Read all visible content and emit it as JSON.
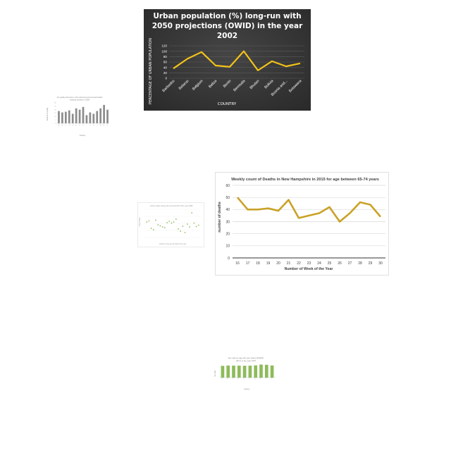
{
  "chart_data": [
    {
      "type": "line",
      "title": "Urban population (%) long-run with 2050 projections (OWID) in the year 2002",
      "xlabel": "COUNTRY",
      "ylabel": "PERCENTAGE OF URBAN POPULATION",
      "categories": [
        "Barbados",
        "Belarus",
        "Belgium",
        "Belize",
        "Benin",
        "Bermuda",
        "Bhutan",
        "Bolivia",
        "Bosnia and...",
        "Botswana"
      ],
      "series": [
        {
          "values": [
            36,
            72,
            97,
            47,
            42,
            100,
            29,
            63,
            44,
            55
          ]
        }
      ],
      "ylim": [
        0,
        120
      ],
      "yticks": [
        "0",
        "20",
        "40",
        "60",
        "80",
        "100",
        "120"
      ],
      "grid": true,
      "colors": {
        "background": "#3b3b3b",
        "line": "#f2c218",
        "text": "#ffffff",
        "grid": "#5a5a5a"
      }
    },
    {
      "type": "bar",
      "title": "Air quality discounts in the national environmental health tracking network in 2005",
      "xlabel": "Industry",
      "ylabel": "Amount of quality",
      "categories": [
        "A",
        "B",
        "C",
        "D",
        "E",
        "F",
        "G",
        "H",
        "I",
        "J",
        "K",
        "L",
        "M",
        "N",
        "O"
      ],
      "values": [
        18,
        16,
        17,
        19,
        14,
        22,
        20,
        24,
        12,
        16,
        14,
        18,
        22,
        27,
        20
      ],
      "ylim": [
        0,
        30
      ],
      "colors": {
        "bar": "#8c8c8c"
      }
    },
    {
      "type": "scatter",
      "title": "Cohort value during the second half of the year 2008",
      "xlabel": "Number of the second half of the year",
      "ylabel": "Cohort value",
      "x": [
        1,
        2,
        3,
        4,
        5,
        6,
        7,
        8,
        9,
        10,
        11,
        12,
        13,
        14,
        15,
        16,
        17,
        18,
        19,
        20,
        21,
        22,
        23,
        24
      ],
      "y": [
        2200,
        2350,
        1300,
        1100,
        2450,
        1800,
        1650,
        1500,
        1400,
        2100,
        2300,
        2050,
        2200,
        2600,
        1200,
        900,
        1600,
        700,
        1900,
        1500,
        3500,
        2050,
        1550,
        1750
      ],
      "xlim": [
        0,
        25
      ],
      "ylim": [
        0,
        4000
      ],
      "colors": {
        "point": "#8dbb5a"
      }
    },
    {
      "type": "line",
      "title": "Weekly count of Deaths in New Hampshire in 2015 for age between 65-74 years",
      "xlabel": "Number of Week of the Year",
      "ylabel": "number of deaths",
      "categories": [
        "16",
        "17",
        "18",
        "19",
        "20",
        "21",
        "22",
        "23",
        "24",
        "25",
        "26",
        "27",
        "28",
        "29",
        "30"
      ],
      "series": [
        {
          "values": [
            50,
            40,
            40,
            41,
            39,
            48,
            33,
            35,
            37,
            42,
            30,
            37,
            46,
            44,
            34
          ]
        }
      ],
      "ylim": [
        0,
        60
      ],
      "yticks": [
        "0",
        "10",
        "20",
        "30",
        "40",
        "50",
        "60"
      ],
      "grid": true,
      "colors": {
        "line": "#c9a227",
        "grid": "#d9d9d9",
        "text": "#404040"
      }
    },
    {
      "type": "bar",
      "title": "Sex ratio by age (20 year olds) (UNWPP, 2017) in the year 1975",
      "xlabel": "Country",
      "ylabel": "Sex ratio",
      "categories": [
        "A",
        "B",
        "C",
        "D",
        "E",
        "F",
        "G",
        "H",
        "I",
        "J"
      ],
      "values": [
        101,
        104,
        103,
        103,
        102,
        103,
        105,
        112,
        110,
        104
      ],
      "ylim": [
        0,
        120
      ],
      "colors": {
        "bar": "#8dbb5a"
      }
    }
  ]
}
